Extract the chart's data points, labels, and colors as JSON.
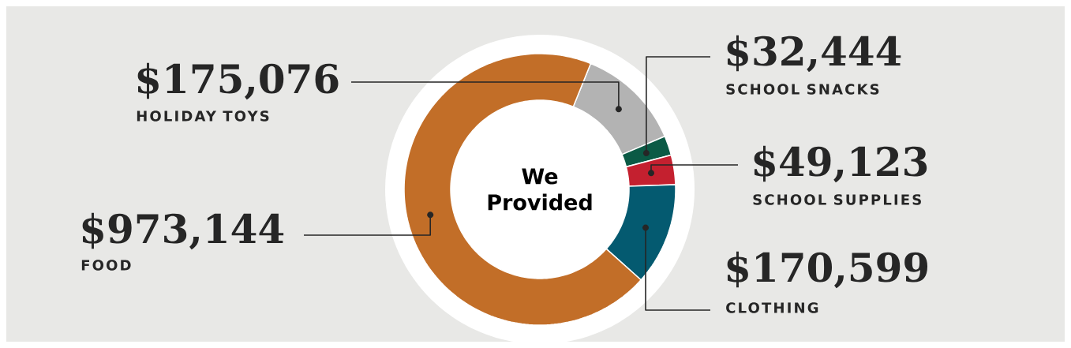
{
  "chart_data": {
    "type": "donut",
    "title": "We Provided",
    "categories": [
      "HOLIDAY TOYS",
      "SCHOOL SNACKS",
      "SCHOOL SUPPLIES",
      "CLOTHING",
      "FOOD"
    ],
    "values": [
      175076,
      32444,
      49123,
      170599,
      973144
    ],
    "colors": [
      "#b3b3b3",
      "#0b5a45",
      "#c4202f",
      "#045a70",
      "#c26e28"
    ],
    "value_labels": [
      "$175,076",
      "$32,444",
      "$49,123",
      "$170,599",
      "$973,144"
    ]
  }
}
